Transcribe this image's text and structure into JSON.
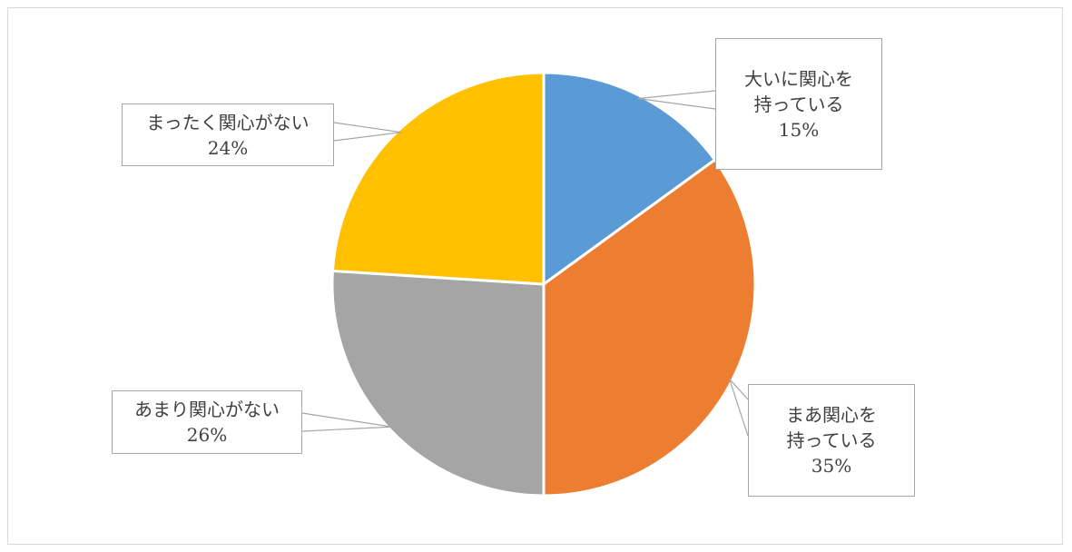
{
  "chart_data": {
    "type": "pie",
    "title": "",
    "slices": [
      {
        "label_lines": [
          "大いに関心を",
          "持っている"
        ],
        "percent_label": "15%",
        "value": 15,
        "color": "#5b9bd5"
      },
      {
        "label_lines": [
          "まあ関心を",
          "持っている"
        ],
        "percent_label": "35%",
        "value": 35,
        "color": "#ed7d31"
      },
      {
        "label_lines": [
          "あまり関心がない"
        ],
        "percent_label": "26%",
        "value": 26,
        "color": "#a5a5a5"
      },
      {
        "label_lines": [
          "まったく関心がない"
        ],
        "percent_label": "24%",
        "value": 24,
        "color": "#ffc000"
      }
    ],
    "legend": "none",
    "data_labels": "callouts"
  }
}
